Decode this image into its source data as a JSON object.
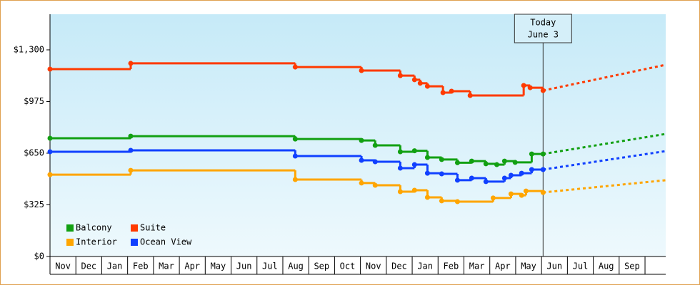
{
  "chart_data": {
    "type": "step-line",
    "annotation": [
      "Today",
      "June 3"
    ],
    "today_x": 19.06,
    "categories": [
      "Nov",
      "Dec",
      "Jan",
      "Feb",
      "Mar",
      "Apr",
      "May",
      "Jun",
      "Jul",
      "Aug",
      "Sep",
      "Oct",
      "Nov",
      "Dec",
      "Jan",
      "Feb",
      "Mar",
      "Apr",
      "May",
      "Jun",
      "Jul",
      "Aug",
      "Sep"
    ],
    "xlim": [
      0,
      23.8
    ],
    "ylim": [
      0,
      1524
    ],
    "yticks": [
      {
        "value": 0,
        "label": "$0"
      },
      {
        "value": 325,
        "label": "$325"
      },
      {
        "value": 650,
        "label": "$650"
      },
      {
        "value": 975,
        "label": "$975"
      },
      {
        "value": 1300,
        "label": "$1,300"
      }
    ],
    "series": [
      {
        "name": "Balcony",
        "color": "#12a012",
        "x": [
          0,
          3.12,
          9.48,
          12.04,
          12.57,
          13.54,
          14.09,
          14.59,
          15.14,
          15.75,
          16.3,
          16.85,
          17.27,
          17.57,
          17.98,
          18.62,
          19.06
        ],
        "values": [
          744,
          757,
          739,
          730,
          699,
          659,
          665,
          623,
          610,
          590,
          600,
          583,
          578,
          600,
          592,
          645,
          645
        ],
        "forecast": 771
      },
      {
        "name": "Suite",
        "color": "#ff3a00",
        "x": [
          0,
          3.12,
          9.48,
          12.04,
          13.54,
          14.09,
          14.31,
          14.59,
          15.19,
          15.52,
          16.24,
          18.31,
          18.56,
          19.06
        ],
        "values": [
          1179,
          1215,
          1192,
          1170,
          1138,
          1112,
          1090,
          1071,
          1031,
          1040,
          1013,
          1076,
          1062,
          1044
        ],
        "forecast": 1206
      },
      {
        "name": "Interior",
        "color": "#ffa500",
        "x": [
          0,
          3.12,
          9.48,
          12.04,
          12.57,
          13.54,
          14.09,
          14.59,
          15.14,
          15.75,
          17.13,
          17.82,
          18.23,
          18.4,
          19.06
        ],
        "values": [
          515,
          542,
          484,
          462,
          448,
          408,
          417,
          372,
          350,
          345,
          368,
          394,
          385,
          412,
          403
        ],
        "forecast": 480
      },
      {
        "name": "Ocean View",
        "color": "#1040ff",
        "x": [
          0,
          3.12,
          9.48,
          12.04,
          12.57,
          13.54,
          14.09,
          14.59,
          15.14,
          15.75,
          16.3,
          16.85,
          17.57,
          17.82,
          18.23,
          18.62,
          19.06
        ],
        "values": [
          659,
          668,
          632,
          605,
          596,
          556,
          578,
          524,
          520,
          480,
          493,
          471,
          493,
          511,
          524,
          547,
          547
        ],
        "forecast": 663
      }
    ]
  }
}
